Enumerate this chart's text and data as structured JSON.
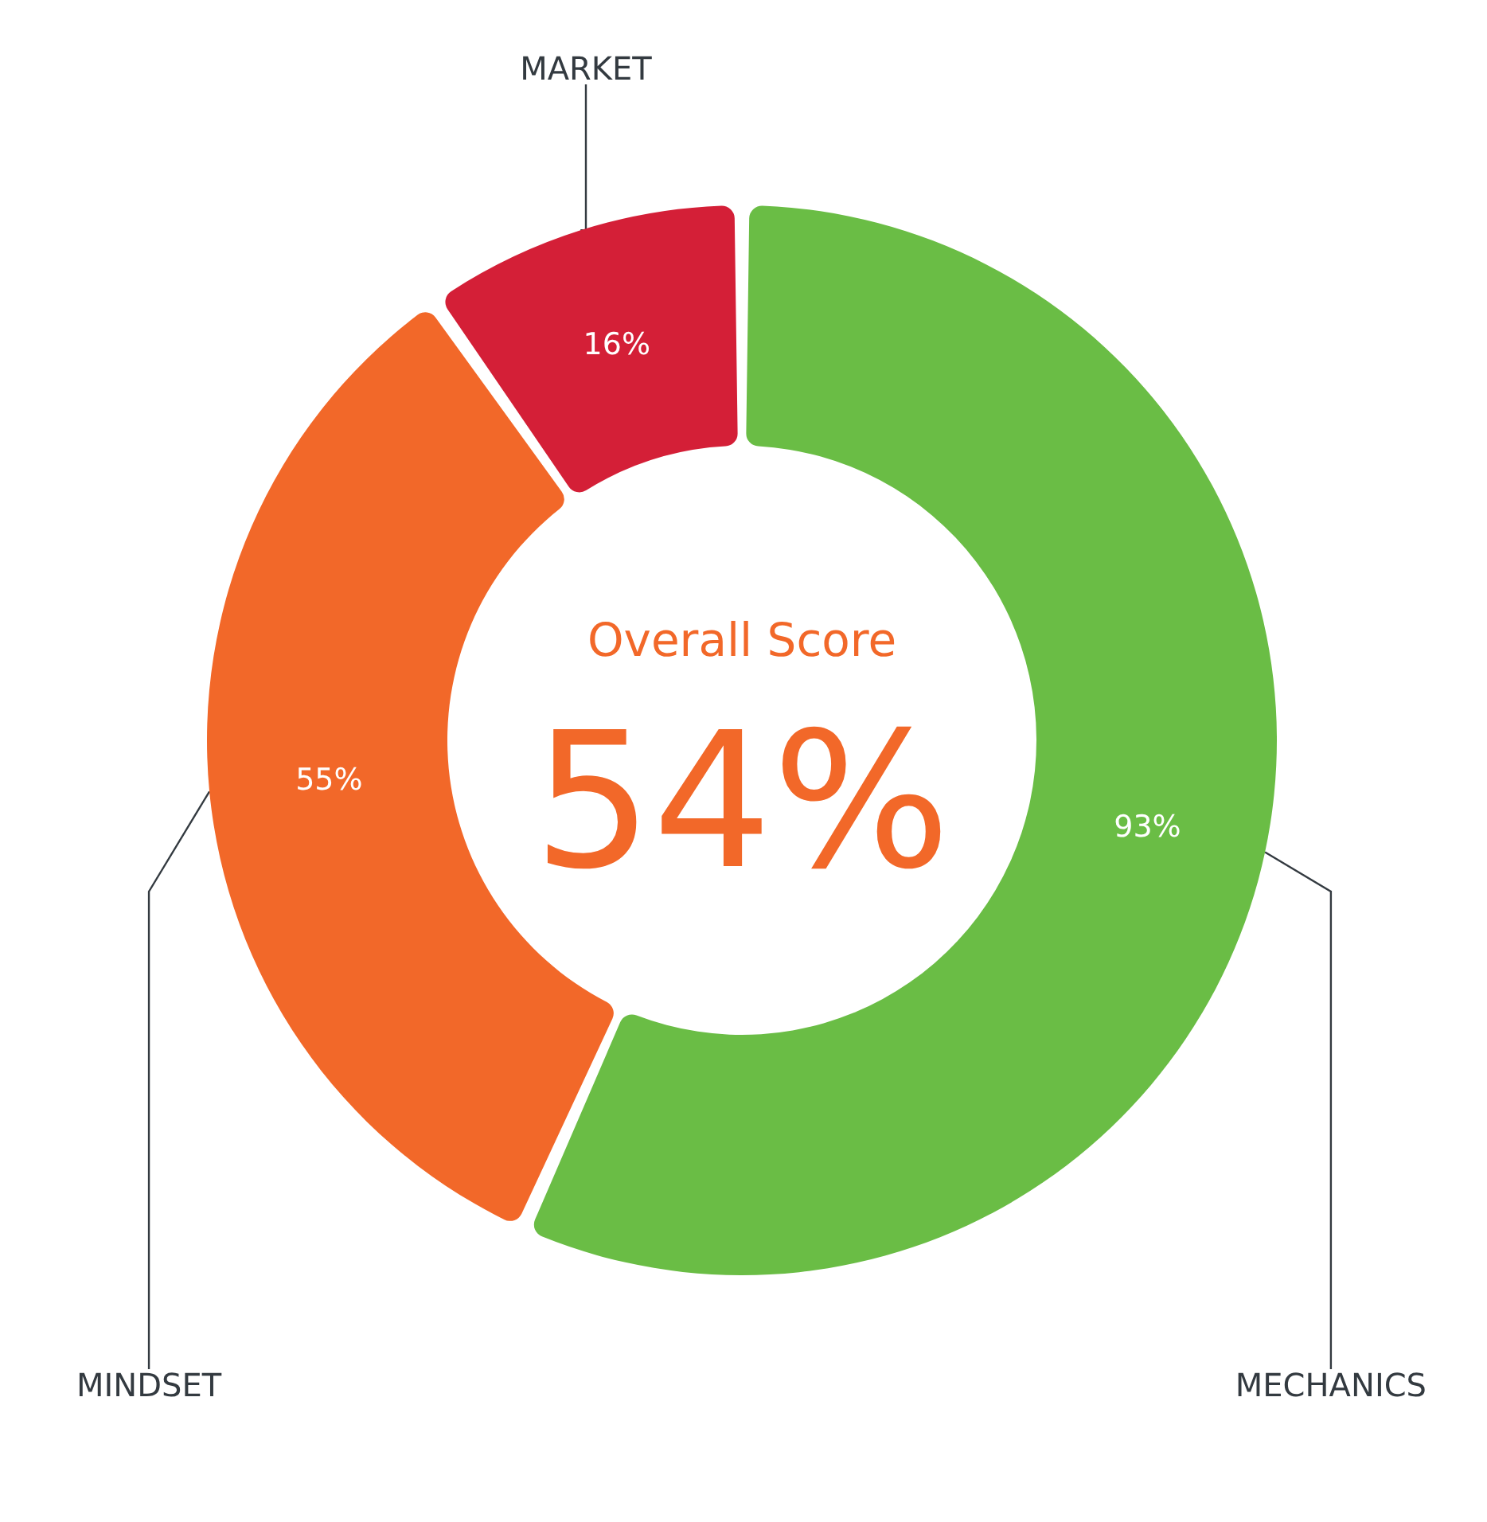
{
  "chart_data": {
    "type": "donut",
    "categories": [
      "MECHANICS",
      "MINDSET",
      "MARKET"
    ],
    "values": [
      93,
      55,
      16
    ],
    "value_labels": [
      "93%",
      "55%",
      "16%"
    ],
    "colors": [
      "#6abd45",
      "#f26829",
      "#d41f37"
    ],
    "annotations": [
      "Overall Score",
      "54%"
    ]
  }
}
